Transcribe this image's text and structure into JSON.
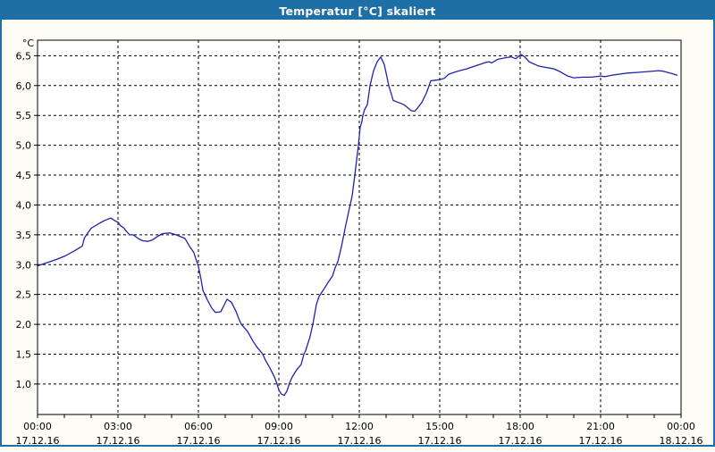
{
  "window": {
    "title": "Temperatur [°C] skaliert",
    "title_bar_color": "#1d6fa5",
    "border_color": "#1d6fa5",
    "background_color": "#fdfdf6"
  },
  "chart_data": {
    "type": "line",
    "title": "Temperatur [°C] skaliert",
    "grid": "dashed-black",
    "plot_background": "#ffffff",
    "line_color": "#2121ad",
    "y_axis": {
      "unit_label": "°C",
      "tick_values": [
        1.0,
        1.5,
        2.0,
        2.5,
        3.0,
        3.5,
        4.0,
        4.5,
        5.0,
        5.5,
        6.0,
        6.5
      ],
      "tick_labels": [
        "1,0",
        "1,5",
        "2,0",
        "2,5",
        "3,0",
        "3,5",
        "4,0",
        "4,5",
        "5,0",
        "5,5",
        "6,0",
        "6,5"
      ],
      "range": [
        0.49,
        6.76
      ]
    },
    "x_axis": {
      "range_minutes": [
        0,
        1440
      ],
      "major_tick_interval_minutes": 180,
      "minor_tick_interval_minutes": 60,
      "ticks": [
        {
          "t": 0,
          "time": "00:00",
          "date": "17.12.16"
        },
        {
          "t": 180,
          "time": "03:00",
          "date": "17.12.16"
        },
        {
          "t": 360,
          "time": "06:00",
          "date": "17.12.16"
        },
        {
          "t": 540,
          "time": "09:00",
          "date": "17.12.16"
        },
        {
          "t": 720,
          "time": "12:00",
          "date": "17.12.16"
        },
        {
          "t": 900,
          "time": "15:00",
          "date": "17.12.16"
        },
        {
          "t": 1080,
          "time": "18:00",
          "date": "17.12.16"
        },
        {
          "t": 1260,
          "time": "21:00",
          "date": "17.12.16"
        },
        {
          "t": 1440,
          "time": "00:00",
          "date": "18.12.16"
        }
      ]
    },
    "series": [
      {
        "name": "Temperatur",
        "color": "#2121ad",
        "points_minutes_celsius": [
          [
            0,
            2.98
          ],
          [
            20,
            3.03
          ],
          [
            40,
            3.08
          ],
          [
            60,
            3.14
          ],
          [
            80,
            3.22
          ],
          [
            100,
            3.31
          ],
          [
            105,
            3.45
          ],
          [
            120,
            3.61
          ],
          [
            140,
            3.7
          ],
          [
            150,
            3.74
          ],
          [
            164,
            3.78
          ],
          [
            172,
            3.74
          ],
          [
            180,
            3.71
          ],
          [
            186,
            3.65
          ],
          [
            192,
            3.62
          ],
          [
            200,
            3.55
          ],
          [
            206,
            3.5
          ],
          [
            214,
            3.5
          ],
          [
            225,
            3.44
          ],
          [
            235,
            3.4
          ],
          [
            246,
            3.39
          ],
          [
            256,
            3.41
          ],
          [
            270,
            3.48
          ],
          [
            280,
            3.52
          ],
          [
            296,
            3.53
          ],
          [
            310,
            3.5
          ],
          [
            330,
            3.44
          ],
          [
            340,
            3.31
          ],
          [
            350,
            3.2
          ],
          [
            355,
            3.08
          ],
          [
            360,
            2.97
          ],
          [
            366,
            2.75
          ],
          [
            370,
            2.57
          ],
          [
            380,
            2.41
          ],
          [
            390,
            2.27
          ],
          [
            398,
            2.2
          ],
          [
            410,
            2.21
          ],
          [
            418,
            2.33
          ],
          [
            424,
            2.42
          ],
          [
            434,
            2.37
          ],
          [
            444,
            2.22
          ],
          [
            450,
            2.1
          ],
          [
            456,
            2.0
          ],
          [
            470,
            1.88
          ],
          [
            482,
            1.72
          ],
          [
            490,
            1.63
          ],
          [
            504,
            1.5
          ],
          [
            510,
            1.4
          ],
          [
            520,
            1.27
          ],
          [
            530,
            1.12
          ],
          [
            536,
            1.0
          ],
          [
            540,
            0.9
          ],
          [
            546,
            0.83
          ],
          [
            552,
            0.81
          ],
          [
            558,
            0.88
          ],
          [
            564,
            1.02
          ],
          [
            570,
            1.12
          ],
          [
            580,
            1.24
          ],
          [
            590,
            1.33
          ],
          [
            596,
            1.5
          ],
          [
            600,
            1.56
          ],
          [
            610,
            1.8
          ],
          [
            616,
            2.0
          ],
          [
            624,
            2.33
          ],
          [
            630,
            2.47
          ],
          [
            640,
            2.58
          ],
          [
            650,
            2.7
          ],
          [
            660,
            2.81
          ],
          [
            666,
            2.95
          ],
          [
            672,
            3.05
          ],
          [
            680,
            3.3
          ],
          [
            688,
            3.6
          ],
          [
            696,
            3.88
          ],
          [
            704,
            4.15
          ],
          [
            710,
            4.5
          ],
          [
            718,
            5.0
          ],
          [
            722,
            5.3
          ],
          [
            726,
            5.4
          ],
          [
            728,
            5.5
          ],
          [
            732,
            5.6
          ],
          [
            738,
            5.68
          ],
          [
            744,
            6.0
          ],
          [
            752,
            6.25
          ],
          [
            760,
            6.4
          ],
          [
            768,
            6.48
          ],
          [
            776,
            6.35
          ],
          [
            786,
            6.0
          ],
          [
            796,
            5.75
          ],
          [
            810,
            5.71
          ],
          [
            820,
            5.68
          ],
          [
            830,
            5.62
          ],
          [
            836,
            5.58
          ],
          [
            844,
            5.57
          ],
          [
            850,
            5.62
          ],
          [
            860,
            5.72
          ],
          [
            870,
            5.87
          ],
          [
            880,
            6.08
          ],
          [
            890,
            6.09
          ],
          [
            900,
            6.1
          ],
          [
            910,
            6.12
          ],
          [
            920,
            6.19
          ],
          [
            940,
            6.24
          ],
          [
            960,
            6.28
          ],
          [
            980,
            6.33
          ],
          [
            1000,
            6.38
          ],
          [
            1010,
            6.4
          ],
          [
            1016,
            6.38
          ],
          [
            1030,
            6.44
          ],
          [
            1050,
            6.47
          ],
          [
            1060,
            6.48
          ],
          [
            1070,
            6.45
          ],
          [
            1082,
            6.52
          ],
          [
            1090,
            6.48
          ],
          [
            1100,
            6.4
          ],
          [
            1120,
            6.33
          ],
          [
            1140,
            6.3
          ],
          [
            1156,
            6.28
          ],
          [
            1170,
            6.23
          ],
          [
            1186,
            6.16
          ],
          [
            1200,
            6.13
          ],
          [
            1220,
            6.14
          ],
          [
            1240,
            6.14
          ],
          [
            1260,
            6.16
          ],
          [
            1270,
            6.15
          ],
          [
            1290,
            6.18
          ],
          [
            1300,
            6.19
          ],
          [
            1320,
            6.21
          ],
          [
            1340,
            6.22
          ],
          [
            1360,
            6.23
          ],
          [
            1390,
            6.25
          ],
          [
            1400,
            6.24
          ],
          [
            1420,
            6.2
          ],
          [
            1432,
            6.17
          ]
        ]
      }
    ]
  }
}
